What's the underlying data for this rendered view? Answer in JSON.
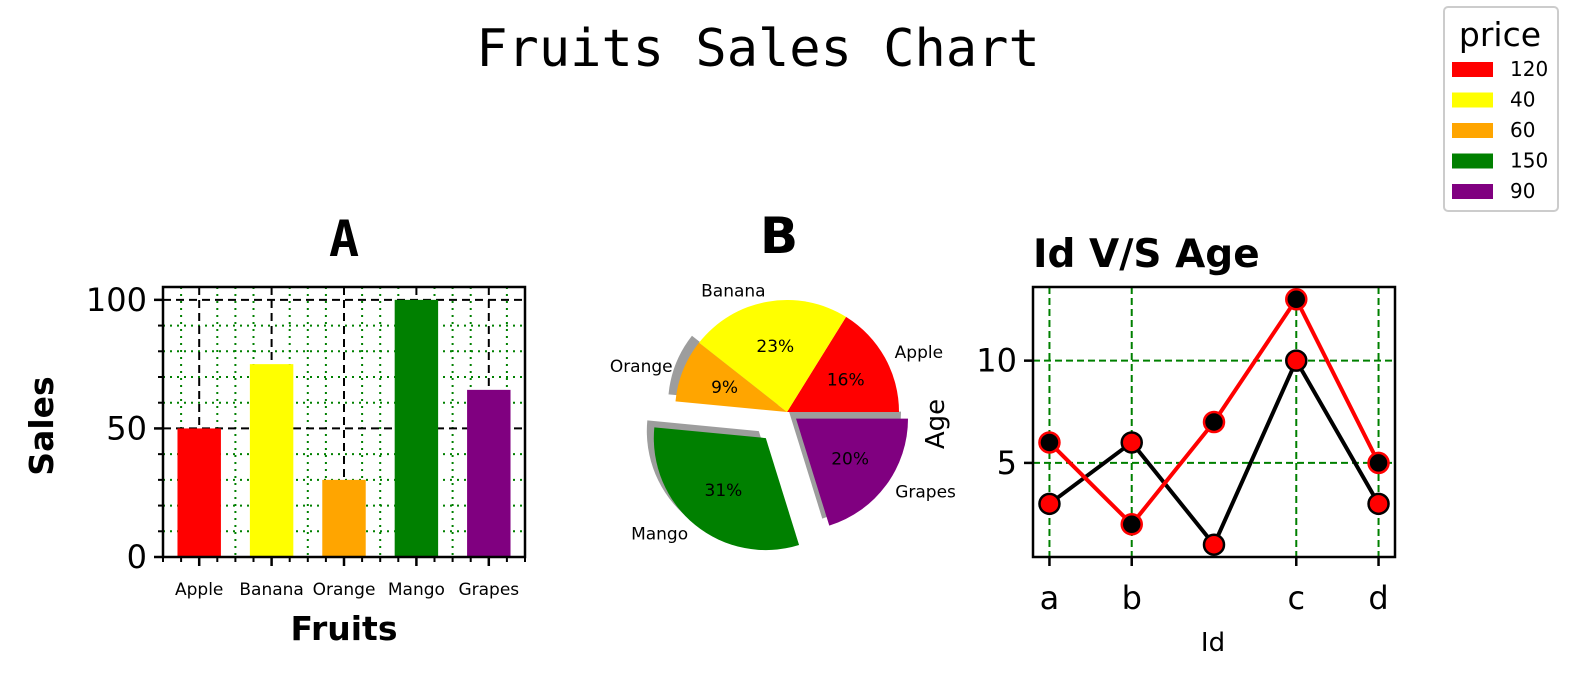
{
  "figure": {
    "title": "Fruits Sales Chart"
  },
  "legend": {
    "title": "price",
    "entries": [
      {
        "label": "120",
        "color": "#ff0000"
      },
      {
        "label": "40",
        "color": "#ffff00"
      },
      {
        "label": "60",
        "color": "#ffa500"
      },
      {
        "label": "150",
        "color": "#008000"
      },
      {
        "label": "90",
        "color": "#800080"
      }
    ]
  },
  "chart_data": [
    {
      "type": "bar",
      "title": "A",
      "xlabel": "Fruits",
      "ylabel": "Sales",
      "categories": [
        "Apple",
        "Banana",
        "Orange",
        "Mango",
        "Grapes"
      ],
      "values": [
        50,
        75,
        30,
        100,
        65
      ],
      "colors": [
        "#ff0000",
        "#ffff00",
        "#ffa500",
        "#008000",
        "#800080"
      ],
      "ylim": [
        0,
        105
      ],
      "yticks": [
        0,
        50,
        100
      ],
      "grid": "major black dashed, minor green dotted"
    },
    {
      "type": "pie",
      "title": "B",
      "labels": [
        "Apple",
        "Banana",
        "Orange",
        "Mango",
        "Grapes"
      ],
      "values": [
        16,
        23,
        9,
        31,
        20
      ],
      "autopct": [
        "16%",
        "23%",
        "9%",
        "31%",
        "20%"
      ],
      "colors": [
        "#ff0000",
        "#ffff00",
        "#ffa500",
        "#008000",
        "#800080"
      ],
      "explode": [
        0,
        0,
        0,
        0.3,
        0.1
      ],
      "shadow": true
    },
    {
      "type": "line",
      "title": "Id V/S Age",
      "xlabel": "Id",
      "ylabel": "Age",
      "x_positions": [
        1,
        2,
        3,
        4,
        5
      ],
      "xticks": [
        {
          "pos": 1,
          "label": "a"
        },
        {
          "pos": 2,
          "label": "b"
        },
        {
          "pos": 4,
          "label": "c"
        },
        {
          "pos": 5,
          "label": "d"
        }
      ],
      "yticks": [
        5,
        10
      ],
      "ylim": [
        0.4,
        13.6
      ],
      "grid": "green dashed",
      "series": [
        {
          "color": "#000000",
          "marker_face": "#ff0000",
          "values": [
            3,
            6,
            1,
            10,
            3
          ]
        },
        {
          "color": "#ff0000",
          "marker_face": "#000000",
          "values": [
            6,
            2,
            7,
            13,
            5
          ]
        }
      ]
    }
  ]
}
